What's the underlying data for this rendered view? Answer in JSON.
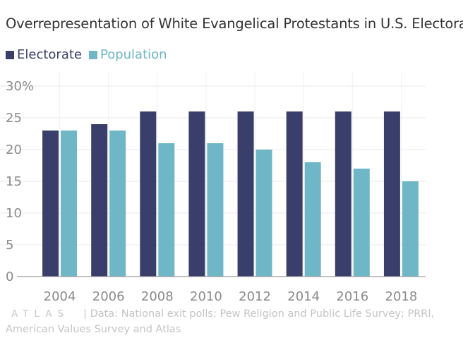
{
  "chart_data": {
    "type": "bar",
    "title": "Overrepresentation of White Evangelical Protestants in U.S. Electorate",
    "categories": [
      "2004",
      "2006",
      "2008",
      "2010",
      "2012",
      "2014",
      "2016",
      "2018"
    ],
    "series": [
      {
        "name": "Electorate",
        "values": [
          23,
          24,
          26,
          26,
          26,
          26,
          26,
          26
        ],
        "color": "#3a3e6b"
      },
      {
        "name": "Population",
        "values": [
          23,
          23,
          21,
          21,
          20,
          18,
          17,
          15
        ],
        "color": "#6fb6c6"
      }
    ],
    "yticks": [
      "0",
      "5",
      "10",
      "15",
      "20",
      "25",
      "30%"
    ],
    "ylim": [
      0,
      30
    ],
    "xlabel": "",
    "ylabel": "",
    "grid": true,
    "legend_position": "top-left"
  },
  "footer": {
    "logo": "ATLAS",
    "source": "| Data: National exit polls; Pew Religion and Public Life Survey; PRRI, American Values Survey and Atlas"
  }
}
